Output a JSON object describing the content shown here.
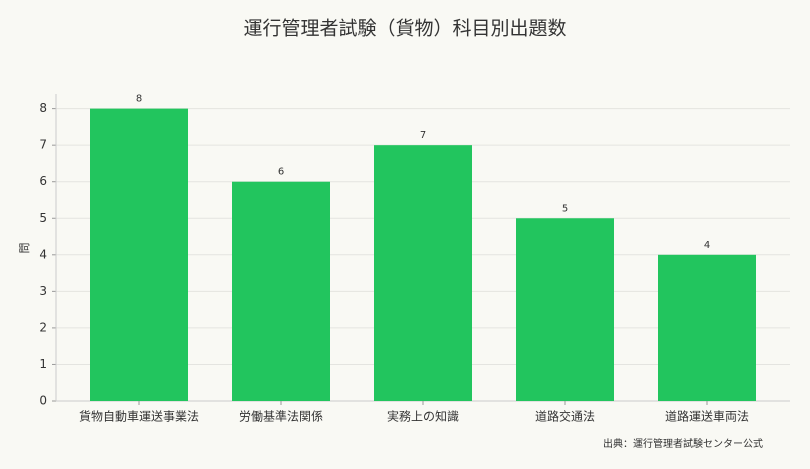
{
  "chart_data": {
    "type": "bar",
    "title": "運行管理者試験（貨物）科目別出題数",
    "y_label": "問",
    "source": "出典：運行管理者試験センター公式",
    "categories": [
      "貨物自動車運送事業法",
      "労働基準法関係",
      "実務上の知識",
      "道路交通法",
      "道路運送車両法"
    ],
    "values": [
      8,
      6,
      7,
      5,
      4
    ],
    "color": "#22c55e",
    "ylim": [
      0,
      8.4
    ],
    "yticks": [
      0,
      1,
      2,
      3,
      4,
      5,
      6,
      7,
      8
    ],
    "grid": true
  }
}
